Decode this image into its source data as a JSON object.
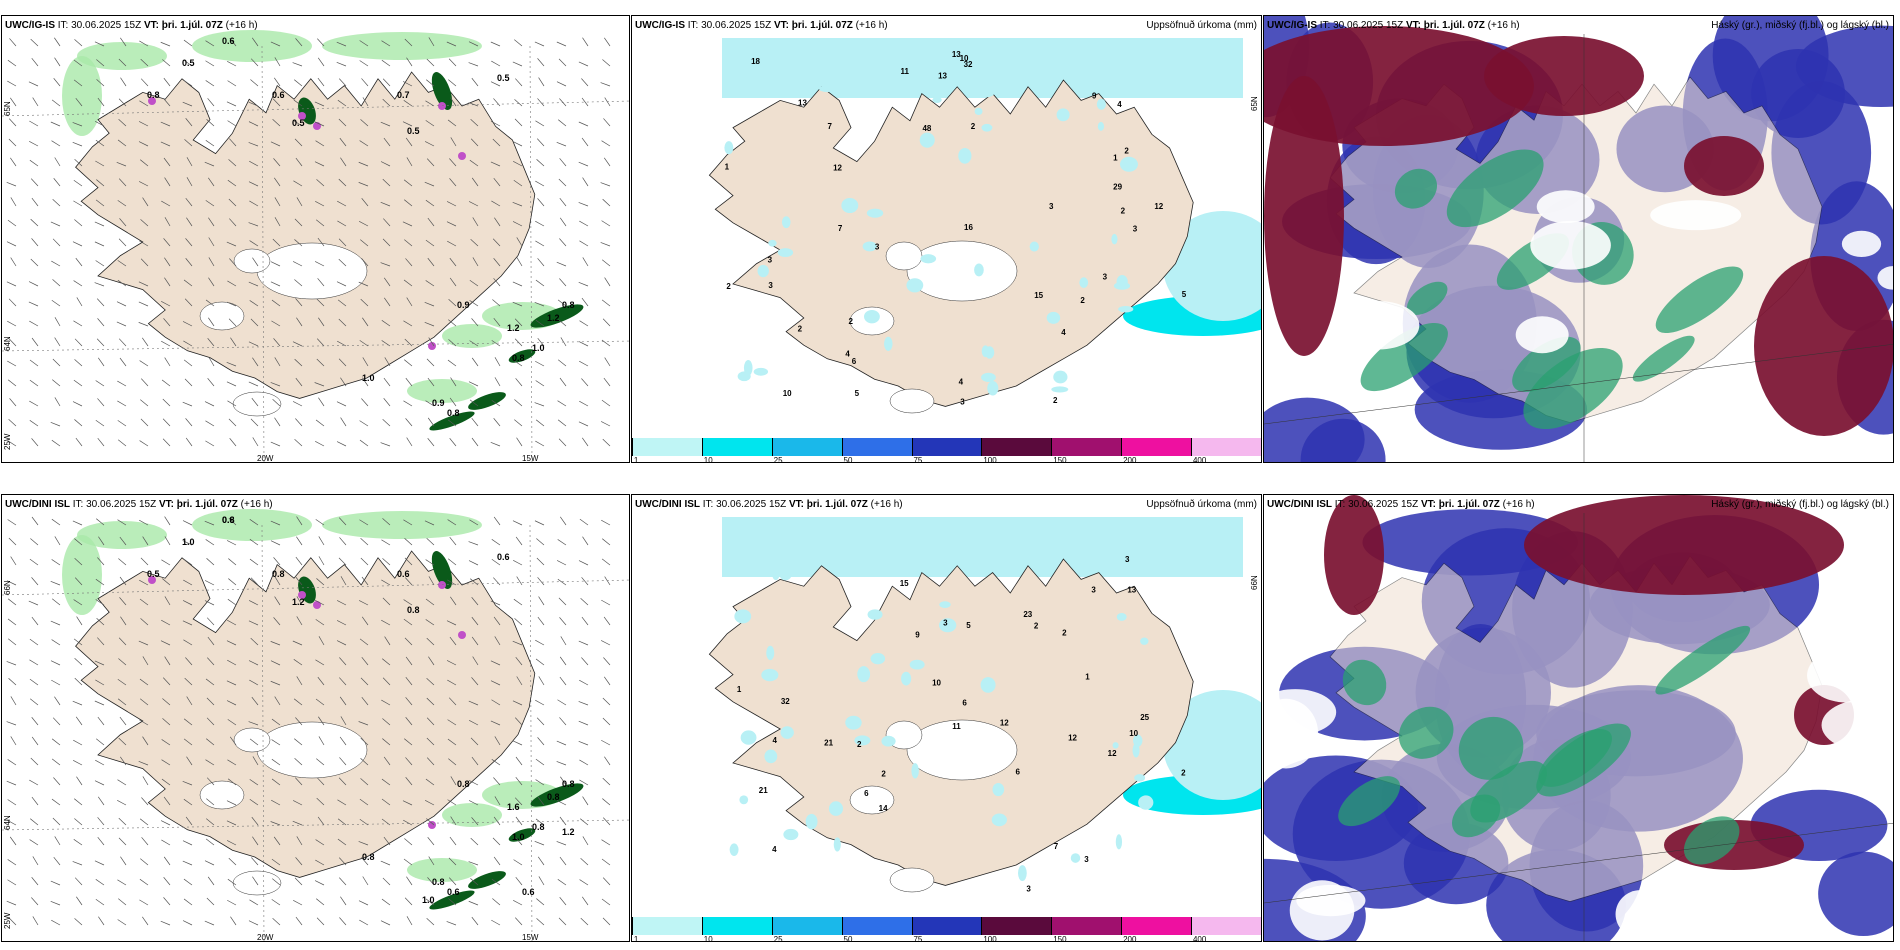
{
  "panels": [
    {
      "id": "uwc-igis-wind",
      "model": "UWC/IG-IS",
      "it": "IT: 30.06.2025 15Z",
      "vt": "VT: þri. 1.júl. 07Z",
      "lead": "(+16 h)",
      "right_title": "",
      "lat_labels": [
        "65N",
        "64N"
      ],
      "lon_labels": [
        "20W",
        "15W",
        "25W"
      ],
      "values": [
        "0.6",
        "0.5",
        "0.6",
        "0.8",
        "0.5",
        "0.7",
        "0.5",
        "0.5",
        "0.9",
        "0.8",
        "1.2",
        "0.8",
        "1.0",
        "1.2",
        "1.0",
        "0.9",
        "0.8"
      ]
    },
    {
      "id": "uwc-igis-precip",
      "model": "UWC/IG-IS",
      "it": "IT: 30.06.2025 15Z",
      "vt": "VT: þri. 1.júl. 07Z",
      "lead": "(+16 h)",
      "right_title": "Uppsöfnuð úrkoma (mm)",
      "lat_labels": [
        "65N"
      ],
      "values": [
        "2",
        "2",
        "2",
        "3",
        "2",
        "13",
        "13",
        "12",
        "15",
        "2",
        "3",
        "4",
        "10",
        "6",
        "2",
        "4",
        "5",
        "3",
        "16",
        "18",
        "32",
        "29",
        "12",
        "48",
        "13",
        "7",
        "3",
        "9",
        "3",
        "7",
        "3",
        "4",
        "2",
        "11",
        "10",
        "2",
        "5",
        "3",
        "1",
        "4",
        "1"
      ]
    },
    {
      "id": "uwc-igis-cloud",
      "model": "UWC/IG-IS",
      "it": "IT: 30.06.2025 15Z",
      "vt": "VT: þri. 1.júl. 07Z",
      "lead": "(+16 h)",
      "right_title": "Háský (gr.), miðský (fj.bl.) og lágský (bl.)"
    },
    {
      "id": "uwc-dini-wind",
      "model": "UWC/DINI ISL",
      "it": "IT: 30.06.2025 15Z",
      "vt": "VT: þri. 1.júl. 07Z",
      "lead": "(+16 h)",
      "right_title": "",
      "lat_labels": [
        "66N",
        "64N"
      ],
      "lon_labels": [
        "20W",
        "15W",
        "25W"
      ],
      "values": [
        "0.6",
        "1.0",
        "0.8",
        "0.5",
        "0.6",
        "0.6",
        "0.8",
        "1.2",
        "0.8",
        "0.8",
        "0.8",
        "1.0",
        "0.8",
        "1.6",
        "0.8",
        "0.8",
        "0.6",
        "1.0",
        "0.6",
        "1.2",
        "0.8"
      ]
    },
    {
      "id": "uwc-dini-precip",
      "model": "UWC/DINI ISL",
      "it": "IT: 30.06.2025 15Z",
      "vt": "VT: þri. 1.júl. 07Z",
      "lead": "(+16 h)",
      "right_title": "Uppsöfnuð úrkoma (mm)",
      "lat_labels": [
        "66N"
      ],
      "values": [
        "2",
        "2",
        "3",
        "2",
        "3",
        "14",
        "15",
        "12",
        "21",
        "12",
        "6",
        "1",
        "4",
        "3",
        "5",
        "1",
        "2",
        "25",
        "32",
        "21",
        "11",
        "10",
        "13",
        "6",
        "4",
        "6",
        "23",
        "9",
        "12",
        "10",
        "7",
        "3",
        "3",
        "2"
      ]
    },
    {
      "id": "uwc-dini-cloud",
      "model": "UWC/DINI ISL",
      "it": "IT: 30.06.2025 15Z",
      "vt": "VT: þri. 1.júl. 07Z",
      "lead": "(+16 h)",
      "right_title": "Háský (gr.), miðský (fj.bl.) og lágský (bl.)"
    }
  ],
  "colorbar": {
    "ticks": [
      "1",
      "10",
      "25",
      "50",
      "75",
      "100",
      "150",
      "200",
      "400"
    ],
    "colors": [
      "#bff5f5",
      "#00e5ee",
      "#1ab8ea",
      "#2e6fe8",
      "#2336b8",
      "#5a0a3c",
      "#a0106e",
      "#ee10a0",
      "#f5b8ee"
    ]
  },
  "colors": {
    "land": "#efe0d0",
    "coast": "#222222",
    "precip_light": "#b8f0f5",
    "wind_green": "#a9e8a9",
    "wind_dark": "#0a5a1a",
    "high_cloud": "#7a1030",
    "mid_cloud": "#2e33b0",
    "low_cloud": "#2aa070"
  }
}
